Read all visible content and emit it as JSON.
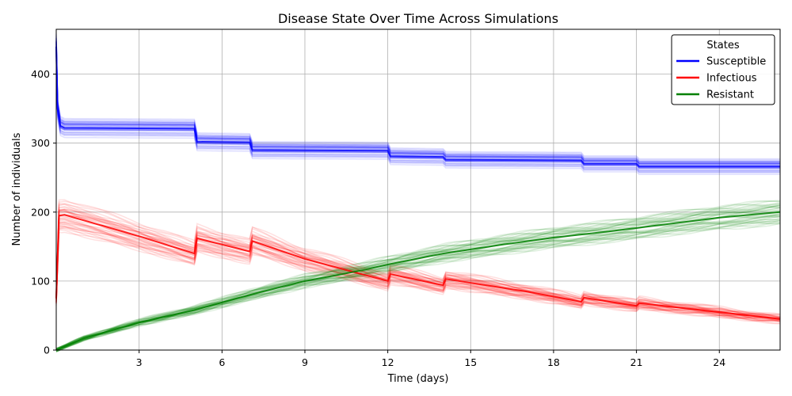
{
  "chart_data": {
    "type": "line",
    "title": "Disease State Over Time Across Simulations",
    "xlabel": "Time (days)",
    "ylabel": "Number of individuals",
    "xlim": [
      0,
      26.2
    ],
    "ylim": [
      0,
      465
    ],
    "xticks": [
      3,
      6,
      9,
      12,
      15,
      18,
      21,
      24
    ],
    "yticks": [
      0,
      100,
      200,
      300,
      400
    ],
    "grid": true,
    "legend": {
      "title": "States",
      "position": "top-right"
    },
    "series": [
      {
        "name": "Susceptible",
        "color": "#0000ff",
        "x": [
          0,
          0.05,
          0.15,
          0.3,
          5.0,
          5.1,
          7.0,
          7.1,
          12.0,
          12.1,
          14.0,
          14.1,
          19.0,
          19.1,
          21.0,
          21.1,
          26.2
        ],
        "y": [
          440,
          350,
          325,
          322,
          321,
          302,
          301,
          290,
          289,
          281,
          280,
          276,
          275,
          270,
          270,
          266,
          266
        ]
      },
      {
        "name": "Infectious",
        "color": "#ff0000",
        "x": [
          0,
          0.1,
          0.3,
          1,
          3,
          5.0,
          5.1,
          7.0,
          7.1,
          9,
          12.0,
          12.1,
          14.0,
          14.1,
          17,
          19.0,
          19.1,
          21.0,
          21.1,
          24,
          26.2
        ],
        "y": [
          75,
          195,
          196,
          188,
          165,
          140,
          162,
          143,
          158,
          132,
          100,
          110,
          94,
          103,
          85,
          70,
          76,
          64,
          68,
          55,
          45
        ]
      },
      {
        "name": "Resistant",
        "color": "#008000",
        "x": [
          0,
          1,
          3,
          5,
          7,
          9,
          11,
          12,
          14,
          16,
          18,
          20,
          22,
          24,
          26.2
        ],
        "y": [
          0,
          17,
          40,
          58,
          80,
          100,
          115,
          124,
          140,
          152,
          163,
          172,
          182,
          192,
          200
        ]
      }
    ]
  }
}
